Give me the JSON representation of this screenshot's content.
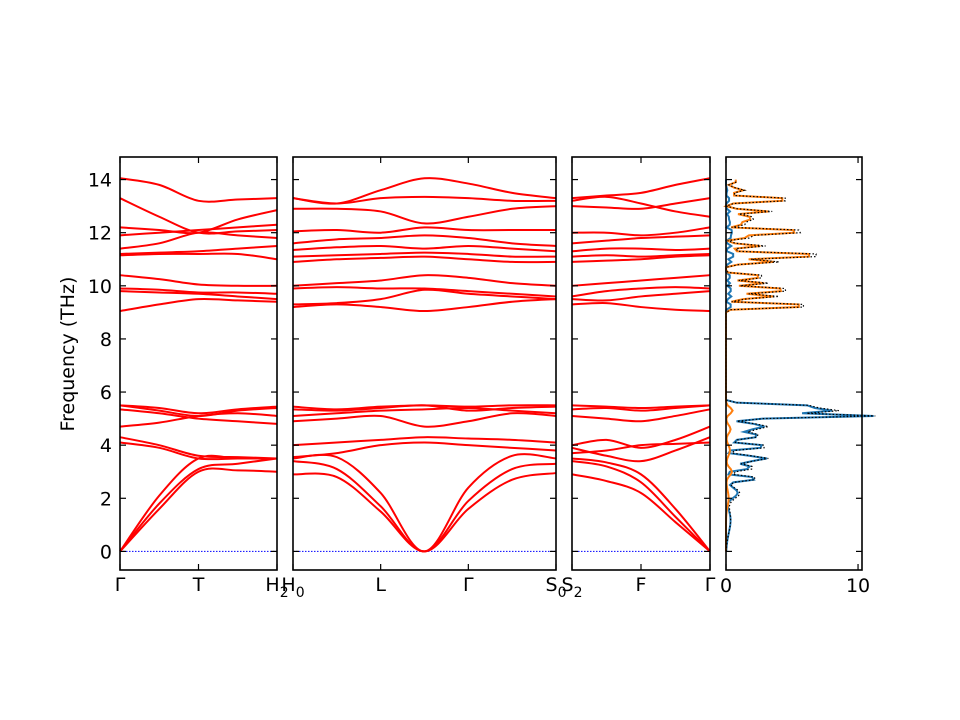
{
  "chart_data": {
    "type": "line",
    "ylabel": "Frequency (THz)",
    "ylim": [
      -0.7,
      14.85
    ],
    "yticks": [
      0,
      2,
      4,
      6,
      8,
      10,
      12,
      14
    ],
    "colors": {
      "bands": "#ff0000",
      "zero_line": "#0000ff",
      "dos_1": "#1f77b4",
      "dos_2": "#ff7f0e",
      "dos_total": "#000000"
    },
    "band_panels": [
      {
        "xticks": [
          {
            "label": "Γ",
            "sub": ""
          },
          {
            "label": "T",
            "sub": ""
          },
          {
            "label": "H",
            "sub": "2"
          }
        ],
        "bands": [
          [
            0.0,
            1.6,
            3.0,
            3.05,
            3.0
          ],
          [
            0.0,
            1.8,
            3.1,
            3.3,
            3.5
          ],
          [
            0.0,
            2.1,
            3.5,
            3.5,
            3.5
          ],
          [
            4.1,
            3.9,
            3.5,
            3.5,
            3.5
          ],
          [
            4.3,
            4.0,
            3.6,
            3.55,
            3.5
          ],
          [
            4.7,
            4.85,
            5.1,
            5.2,
            5.1
          ],
          [
            5.35,
            5.2,
            5.0,
            4.9,
            4.8
          ],
          [
            5.5,
            5.3,
            5.1,
            5.3,
            5.4
          ],
          [
            5.5,
            5.4,
            5.2,
            5.35,
            5.45
          ],
          [
            9.05,
            9.3,
            9.5,
            9.45,
            9.4
          ],
          [
            9.8,
            9.75,
            9.7,
            9.6,
            9.5
          ],
          [
            9.9,
            9.85,
            9.75,
            9.75,
            9.7
          ],
          [
            10.4,
            10.25,
            10.05,
            10.0,
            10.0
          ],
          [
            11.15,
            11.2,
            11.2,
            11.2,
            11.0
          ],
          [
            11.2,
            11.25,
            11.3,
            11.4,
            11.5
          ],
          [
            11.4,
            11.6,
            12.0,
            11.9,
            11.8
          ],
          [
            11.9,
            12.0,
            12.1,
            12.2,
            12.3
          ],
          [
            12.2,
            12.1,
            12.0,
            12.5,
            12.85
          ],
          [
            13.3,
            12.6,
            12.0,
            12.05,
            12.1
          ],
          [
            14.05,
            13.8,
            13.2,
            13.25,
            13.3
          ]
        ]
      },
      {
        "xticks": [
          {
            "label": "H",
            "sub": "0"
          },
          {
            "label": "L",
            "sub": ""
          },
          {
            "label": "Γ",
            "sub": ""
          },
          {
            "label": "S",
            "sub": "0"
          }
        ],
        "bands": [
          [
            2.9,
            2.8,
            1.5,
            0.0,
            1.6,
            2.7,
            2.95
          ],
          [
            3.4,
            3.1,
            1.7,
            0.0,
            1.9,
            3.1,
            3.3
          ],
          [
            3.5,
            3.55,
            2.2,
            0.0,
            2.4,
            3.6,
            3.5
          ],
          [
            3.55,
            3.7,
            4.0,
            4.1,
            4.0,
            3.9,
            3.8
          ],
          [
            4.0,
            4.1,
            4.2,
            4.3,
            4.25,
            4.2,
            4.1
          ],
          [
            4.9,
            5.0,
            5.1,
            4.7,
            4.9,
            5.2,
            5.1
          ],
          [
            5.1,
            5.2,
            5.3,
            5.35,
            5.4,
            5.3,
            5.2
          ],
          [
            5.35,
            5.3,
            5.4,
            5.5,
            5.3,
            5.4,
            5.45
          ],
          [
            5.45,
            5.35,
            5.45,
            5.5,
            5.45,
            5.5,
            5.5
          ],
          [
            9.2,
            9.3,
            9.2,
            9.05,
            9.2,
            9.4,
            9.5
          ],
          [
            9.3,
            9.35,
            9.5,
            9.85,
            9.7,
            9.6,
            9.5
          ],
          [
            9.9,
            9.95,
            9.9,
            9.9,
            9.8,
            9.7,
            9.6
          ],
          [
            10.0,
            10.1,
            10.2,
            10.4,
            10.3,
            10.1,
            10.0
          ],
          [
            10.9,
            11.0,
            11.05,
            11.1,
            11.0,
            10.9,
            10.9
          ],
          [
            11.1,
            11.15,
            11.2,
            11.25,
            11.2,
            11.1,
            11.1
          ],
          [
            11.35,
            11.45,
            11.5,
            11.4,
            11.5,
            11.4,
            11.3
          ],
          [
            11.6,
            11.75,
            11.8,
            11.9,
            11.8,
            11.6,
            11.5
          ],
          [
            12.05,
            12.1,
            12.0,
            12.2,
            12.1,
            12.1,
            12.1
          ],
          [
            12.9,
            12.9,
            12.8,
            12.35,
            12.6,
            12.9,
            13.0
          ],
          [
            13.3,
            13.1,
            13.3,
            13.35,
            13.3,
            13.2,
            13.2
          ],
          [
            13.3,
            13.1,
            13.6,
            14.05,
            13.85,
            13.5,
            13.3
          ]
        ]
      },
      {
        "xticks": [
          {
            "label": "S",
            "sub": "2"
          },
          {
            "label": "F",
            "sub": ""
          },
          {
            "label": "Γ",
            "sub": ""
          }
        ],
        "bands": [
          [
            2.9,
            2.65,
            2.2,
            1.1,
            0.0
          ],
          [
            3.4,
            3.2,
            2.6,
            1.3,
            0.0
          ],
          [
            3.5,
            3.35,
            2.9,
            1.6,
            0.0
          ],
          [
            3.7,
            3.8,
            4.0,
            4.05,
            4.1
          ],
          [
            3.9,
            3.6,
            3.4,
            3.8,
            4.3
          ],
          [
            4.0,
            4.2,
            3.9,
            4.2,
            4.7
          ],
          [
            5.1,
            5.0,
            4.9,
            5.1,
            5.35
          ],
          [
            5.35,
            5.4,
            5.3,
            5.4,
            5.5
          ],
          [
            5.5,
            5.45,
            5.4,
            5.45,
            5.5
          ],
          [
            9.3,
            9.35,
            9.2,
            9.1,
            9.05
          ],
          [
            9.5,
            9.45,
            9.6,
            9.7,
            9.8
          ],
          [
            9.6,
            9.8,
            9.9,
            9.95,
            9.9
          ],
          [
            10.0,
            10.1,
            10.2,
            10.3,
            10.4
          ],
          [
            10.9,
            10.95,
            11.0,
            11.1,
            11.15
          ],
          [
            11.1,
            11.15,
            11.1,
            11.15,
            11.2
          ],
          [
            11.3,
            11.4,
            11.4,
            11.35,
            11.4
          ],
          [
            11.6,
            11.7,
            11.8,
            11.85,
            11.9
          ],
          [
            12.0,
            12.0,
            11.9,
            12.0,
            12.2
          ],
          [
            13.0,
            12.95,
            12.9,
            13.1,
            13.3
          ],
          [
            13.2,
            13.35,
            13.1,
            12.8,
            12.6
          ],
          [
            13.3,
            13.4,
            13.5,
            13.8,
            14.05
          ]
        ]
      }
    ],
    "dos": {
      "xlim": [
        0,
        10.3
      ],
      "xticks": [
        0,
        10
      ],
      "grid_step": 0.1,
      "ymin": 0.0,
      "ymax": 14.05,
      "total_peaks": [
        [
          5.1,
          10.0,
          0.06
        ],
        [
          5.35,
          8.2,
          0.05
        ],
        [
          5.5,
          6.0,
          0.05
        ],
        [
          5.25,
          4.0,
          0.1
        ],
        [
          4.7,
          3.2,
          0.12
        ],
        [
          4.35,
          2.6,
          0.1
        ],
        [
          3.95,
          3.5,
          0.08
        ],
        [
          3.5,
          3.2,
          0.1
        ],
        [
          3.15,
          2.2,
          0.1
        ],
        [
          2.75,
          2.6,
          0.08
        ],
        [
          2.2,
          1.0,
          0.2
        ],
        [
          1.2,
          0.35,
          0.5
        ],
        [
          9.25,
          8.3,
          0.06
        ],
        [
          9.6,
          4.0,
          0.07
        ],
        [
          9.85,
          6.3,
          0.06
        ],
        [
          10.1,
          3.2,
          0.06
        ],
        [
          10.35,
          3.8,
          0.06
        ],
        [
          10.9,
          4.0,
          0.06
        ],
        [
          11.15,
          8.8,
          0.07
        ],
        [
          11.5,
          3.0,
          0.06
        ],
        [
          11.85,
          2.5,
          0.06
        ],
        [
          12.05,
          7.8,
          0.06
        ],
        [
          12.35,
          2.0,
          0.06
        ],
        [
          12.55,
          2.8,
          0.06
        ],
        [
          12.8,
          3.5,
          0.06
        ],
        [
          13.25,
          5.8,
          0.07
        ],
        [
          13.6,
          1.4,
          0.08
        ],
        [
          13.95,
          0.9,
          0.08
        ]
      ],
      "partial_2_peaks": [
        [
          9.25,
          7.8,
          0.06
        ],
        [
          9.6,
          3.6,
          0.07
        ],
        [
          9.85,
          5.8,
          0.06
        ],
        [
          10.1,
          2.9,
          0.06
        ],
        [
          10.35,
          3.4,
          0.06
        ],
        [
          10.9,
          3.6,
          0.06
        ],
        [
          11.15,
          8.1,
          0.07
        ],
        [
          11.5,
          2.6,
          0.06
        ],
        [
          11.85,
          2.0,
          0.06
        ],
        [
          12.05,
          7.2,
          0.06
        ],
        [
          12.35,
          1.6,
          0.06
        ],
        [
          12.55,
          2.5,
          0.06
        ],
        [
          12.8,
          3.2,
          0.06
        ],
        [
          13.25,
          5.5,
          0.07
        ],
        [
          13.6,
          1.3,
          0.08
        ],
        [
          13.95,
          0.9,
          0.08
        ],
        [
          5.3,
          0.5,
          0.12
        ],
        [
          4.6,
          0.35,
          0.15
        ],
        [
          3.8,
          0.3,
          0.2
        ],
        [
          3.0,
          0.45,
          0.15
        ],
        [
          2.0,
          0.2,
          0.3
        ]
      ]
    }
  }
}
